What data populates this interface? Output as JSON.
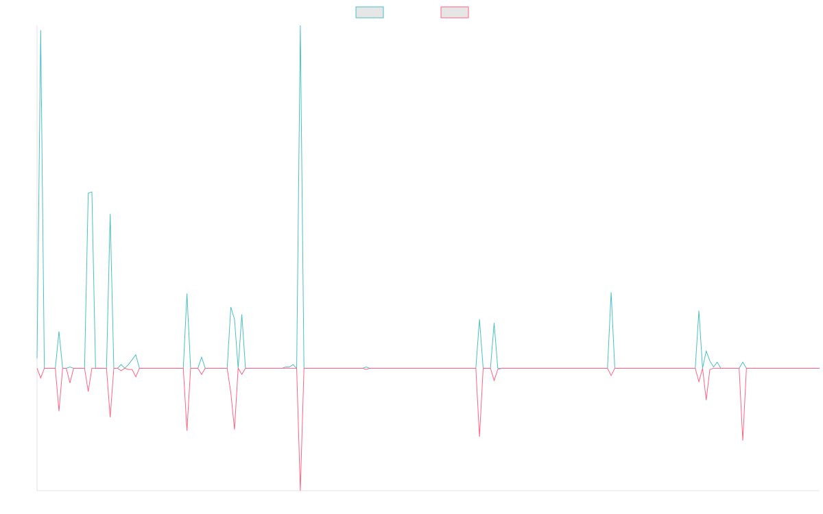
{
  "chart_data": {
    "type": "line",
    "title": "",
    "xlabel": "",
    "ylabel": "",
    "ylim": [
      -100,
      280
    ],
    "grid": false,
    "legend_placement": "top-center",
    "series": [
      {
        "name": "",
        "color": "#4bc0c0",
        "values": [
          8,
          276,
          0,
          0,
          0,
          0,
          30,
          0,
          0,
          1,
          0,
          0,
          0,
          0,
          143,
          144,
          0,
          0,
          0,
          0,
          126,
          0,
          0,
          3,
          0,
          3,
          7,
          11,
          0,
          0,
          0,
          0,
          0,
          0,
          0,
          0,
          0,
          0,
          0,
          0,
          0,
          61,
          0,
          0,
          0,
          9,
          0,
          0,
          0,
          0,
          0,
          0,
          0,
          50,
          40,
          0,
          44,
          0,
          0,
          0,
          0,
          0,
          0,
          0,
          0,
          0,
          0,
          0,
          1,
          1,
          3,
          0,
          280,
          0,
          0,
          0,
          0,
          0,
          0,
          0,
          0,
          0,
          0,
          0,
          0,
          0,
          0,
          0,
          0,
          0,
          1,
          0,
          0,
          0,
          0,
          0,
          0,
          0,
          0,
          0,
          0,
          0,
          0,
          0,
          0,
          0,
          0,
          0,
          0,
          0,
          0,
          0,
          0,
          0,
          0,
          0,
          0,
          0,
          0,
          0,
          0,
          40,
          0,
          0,
          0,
          37,
          0,
          0,
          0,
          0,
          0,
          0,
          0,
          0,
          0,
          0,
          0,
          0,
          0,
          0,
          0,
          0,
          0,
          0,
          0,
          0,
          0,
          0,
          0,
          0,
          0,
          0,
          0,
          0,
          0,
          0,
          0,
          62,
          0,
          0,
          0,
          0,
          0,
          0,
          0,
          0,
          0,
          0,
          0,
          0,
          0,
          0,
          0,
          0,
          0,
          0,
          0,
          0,
          0,
          0,
          0,
          47,
          0,
          14,
          6,
          1,
          5,
          0,
          0,
          0,
          0,
          0,
          0,
          5,
          0,
          0,
          0,
          0,
          0,
          0,
          0,
          0,
          0,
          0,
          0,
          0,
          0,
          0,
          0,
          0,
          0,
          0,
          0,
          0,
          0
        ]
      },
      {
        "name": "",
        "color": "#ff6384",
        "values": [
          0,
          -8,
          0,
          0,
          0,
          0,
          -35,
          0,
          0,
          -12,
          0,
          0,
          0,
          0,
          -19,
          0,
          0,
          0,
          0,
          0,
          -40,
          0,
          0,
          -2,
          0,
          -1,
          -1,
          -7,
          0,
          0,
          0,
          0,
          0,
          0,
          0,
          0,
          0,
          0,
          0,
          0,
          0,
          -51,
          0,
          0,
          0,
          -5,
          0,
          0,
          0,
          0,
          0,
          0,
          0,
          -20,
          -50,
          0,
          -5,
          0,
          0,
          0,
          0,
          0,
          0,
          0,
          0,
          0,
          0,
          0,
          0,
          0,
          0,
          0,
          -100,
          0,
          0,
          0,
          0,
          0,
          0,
          0,
          0,
          0,
          0,
          0,
          0,
          0,
          0,
          0,
          0,
          0,
          -1,
          0,
          0,
          0,
          0,
          0,
          0,
          0,
          0,
          0,
          0,
          0,
          0,
          0,
          0,
          0,
          0,
          0,
          0,
          0,
          0,
          0,
          0,
          0,
          0,
          0,
          0,
          0,
          0,
          0,
          0,
          -56,
          0,
          0,
          0,
          -10,
          -1,
          0,
          0,
          0,
          0,
          0,
          0,
          0,
          0,
          0,
          0,
          0,
          0,
          0,
          0,
          0,
          0,
          0,
          0,
          0,
          0,
          0,
          0,
          0,
          0,
          0,
          0,
          0,
          0,
          0,
          0,
          -6,
          0,
          0,
          0,
          0,
          0,
          0,
          0,
          0,
          0,
          0,
          0,
          0,
          0,
          0,
          0,
          0,
          0,
          0,
          0,
          0,
          0,
          0,
          0,
          -11,
          0,
          -26,
          -1,
          0,
          0,
          0,
          0,
          0,
          0,
          0,
          0,
          -59,
          0,
          0,
          0,
          0,
          0,
          0,
          0,
          0,
          0,
          0,
          0,
          0,
          0,
          0,
          0,
          0,
          0,
          0,
          0,
          0,
          0
        ]
      }
    ]
  }
}
